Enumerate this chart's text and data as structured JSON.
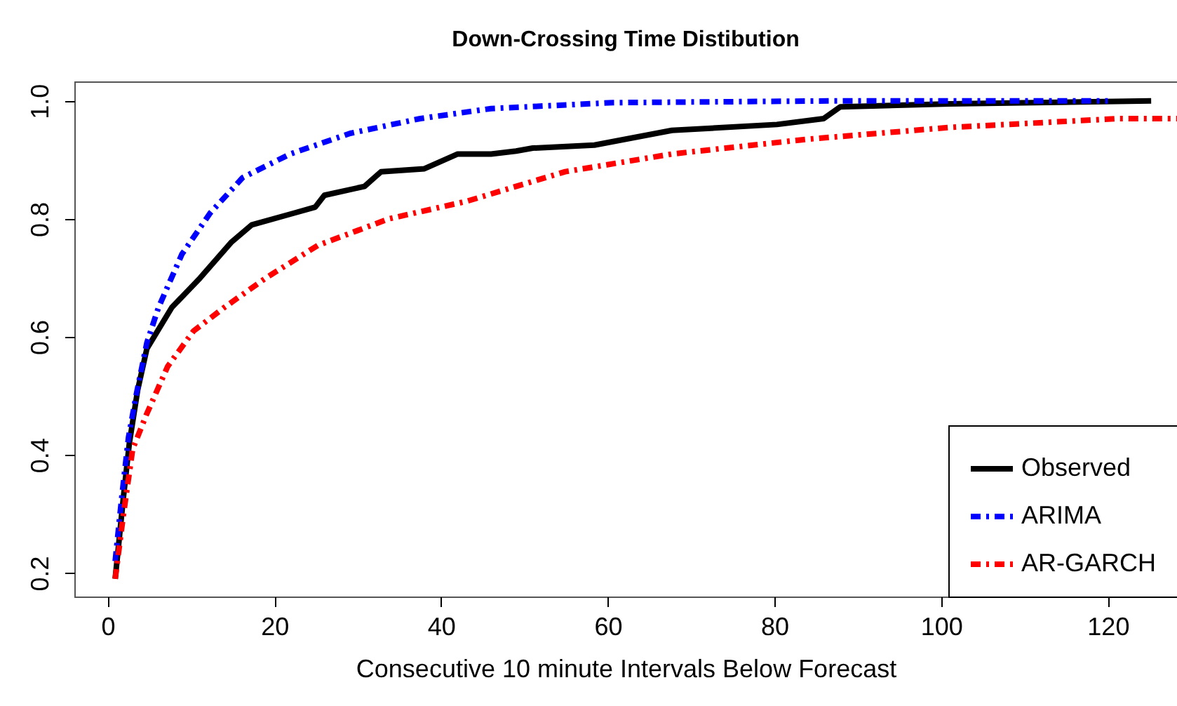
{
  "chart_data": {
    "type": "line",
    "title": "Down-Crossing Time Distibution",
    "xlabel": "Consecutive 10 minute Intervals Below Forecast",
    "xlim": [
      -4,
      128.3
    ],
    "ylim": [
      0.16,
      1.033
    ],
    "xticks": [
      0,
      20,
      40,
      60,
      80,
      100,
      120
    ],
    "yticks": [
      {
        "value": 0.2,
        "label": "0.2"
      },
      {
        "value": 0.4,
        "label": "0.4"
      },
      {
        "value": 0.6,
        "label": "0.6"
      },
      {
        "value": 0.8,
        "label": "0.8"
      },
      {
        "value": 1,
        "label": "1.0"
      }
    ],
    "grid": false,
    "legend": "bottom right",
    "series": [
      {
        "name": "Observed",
        "color": "#000000",
        "line_style": "solid",
        "x": [
          0.9,
          1.9,
          2.6,
          3.6,
          4.7,
          7.7,
          11.1,
          14.8,
          17.3,
          22.4,
          24.9,
          26,
          30.8,
          32.8,
          38,
          42,
          46,
          49,
          51,
          58.4,
          67.7,
          80.3,
          85.9,
          87.9,
          101,
          125.2
        ],
        "values": [
          0.19,
          0.33,
          0.42,
          0.51,
          0.58,
          0.65,
          0.7,
          0.76,
          0.79,
          0.81,
          0.82,
          0.84,
          0.855,
          0.88,
          0.885,
          0.91,
          0.91,
          0.915,
          0.92,
          0.925,
          0.95,
          0.96,
          0.97,
          0.99,
          0.995,
          1.0
        ]
      },
      {
        "name": "ARIMA",
        "color": "#0000ff",
        "line_style": "dashed",
        "x": [
          0.9,
          1.7,
          2.5,
          3.4,
          4.7,
          6.1,
          8.9,
          12.3,
          16.2,
          21.9,
          29.1,
          37.5,
          46,
          60.6,
          87,
          120
        ],
        "values": [
          0.22,
          0.33,
          0.43,
          0.5,
          0.59,
          0.65,
          0.74,
          0.81,
          0.87,
          0.91,
          0.945,
          0.97,
          0.987,
          0.997,
          1.0,
          1.0
        ]
      },
      {
        "name": "AR-GARCH",
        "color": "#ff0000",
        "line_style": "dashed",
        "x": [
          0.9,
          1.9,
          3,
          4.7,
          7.2,
          10.3,
          14,
          19,
          25.2,
          33.7,
          43.1,
          54.9,
          67.7,
          83.9,
          101,
          121.4,
          128.3
        ],
        "values": [
          0.19,
          0.3,
          0.41,
          0.47,
          0.55,
          0.61,
          0.65,
          0.7,
          0.755,
          0.8,
          0.83,
          0.88,
          0.91,
          0.935,
          0.955,
          0.97,
          0.97
        ]
      }
    ]
  }
}
